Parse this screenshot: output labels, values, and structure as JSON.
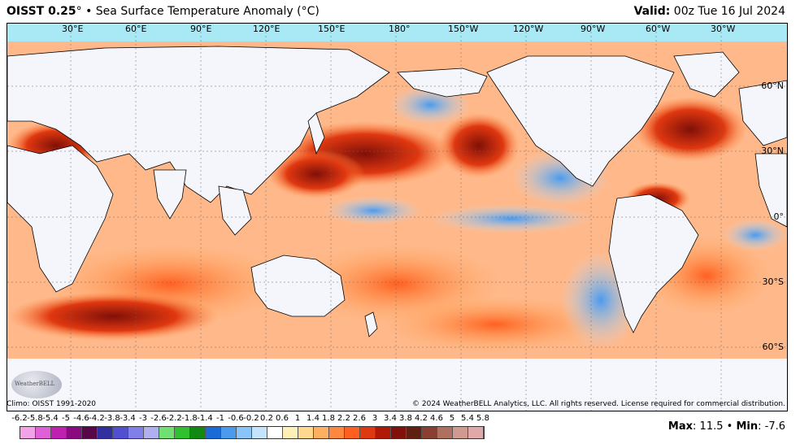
{
  "header": {
    "product": "OISST 0.25",
    "degree": "°",
    "bullet": "•",
    "title": "Sea Surface Temperature Anomaly (°C)",
    "valid_label": "Valid:",
    "valid_value": "00z Tue 16 Jul 2024"
  },
  "longitude_labels": [
    "30°E",
    "60°E",
    "90°E",
    "120°E",
    "150°E",
    "180°",
    "150°W",
    "120°W",
    "90°W",
    "60°W",
    "30°W"
  ],
  "latitude_labels": [
    "60°N",
    "30°N",
    "0°",
    "30°S",
    "60°S"
  ],
  "footer": {
    "climo": "Climo: OISST 1991-2020",
    "copyright": "© 2024 WeatherBELL Analytics, LLC. All rights reserved. License required for commercial distribution.",
    "logo_text": "WeatherBELL"
  },
  "colorbar": {
    "ticks": [
      "-6.2",
      "-5.8",
      "-5.4",
      "-5",
      "-4.6",
      "-4.2",
      "-3.8",
      "-3.4",
      "-3",
      "-2.6",
      "-2.2",
      "-1.8",
      "-1.4",
      "-1",
      "-0.6",
      "-0.2",
      "0.2",
      "0.6",
      "1",
      "1.4",
      "1.8",
      "2.2",
      "2.6",
      "3",
      "3.4",
      "3.8",
      "4.2",
      "4.6",
      "5",
      "5.4",
      "5.8"
    ],
    "colors": [
      "#f2a3e8",
      "#e060d8",
      "#c020b0",
      "#8a0a80",
      "#580848",
      "#3030a0",
      "#5050d0",
      "#8080e8",
      "#b0b0f0",
      "#70e070",
      "#30c030",
      "#108a10",
      "#1a6ad8",
      "#4a9aee",
      "#8ac4f8",
      "#c4e4fb",
      "#ffffff",
      "#fff0b8",
      "#ffd890",
      "#ffb060",
      "#ff8840",
      "#ff6020",
      "#e03810",
      "#b01808",
      "#801008",
      "#602010",
      "#8a4030",
      "#b07060",
      "#d09a90",
      "#e0a8a8"
    ]
  },
  "stats": {
    "max_label": "Max",
    "max_value": "11.5",
    "separator": "•",
    "min_label": "Min",
    "min_value": "-7.6"
  }
}
